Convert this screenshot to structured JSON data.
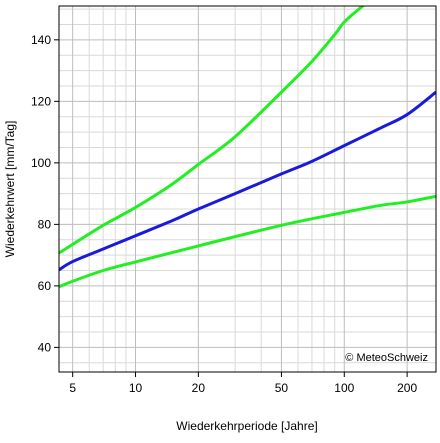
{
  "chart_data": {
    "type": "line",
    "title": "",
    "xlabel": "Wiederkehrperiode [Jahre]",
    "ylabel": "Wiederkehrwert [mm/Tag]",
    "x_scale": "log",
    "xlim": [
      4.3,
      275
    ],
    "ylim": [
      32,
      151
    ],
    "x_ticks": [
      5,
      10,
      20,
      50,
      100,
      200
    ],
    "x_tick_labels": [
      "5",
      "10",
      "20",
      "50",
      "100",
      "200"
    ],
    "x_minor_grid": [
      6,
      7,
      8,
      9,
      30,
      40,
      60,
      70,
      80,
      90
    ],
    "y_ticks": [
      40,
      60,
      80,
      100,
      120,
      140
    ],
    "y_tick_labels": [
      "40",
      "60",
      "80",
      "100",
      "120",
      "140"
    ],
    "y_minor_step": 5,
    "grid": true,
    "annotation": "© MeteoSchweiz",
    "colors": {
      "estimate": "#1a1adc",
      "confidence": "#22ee22",
      "grid_major": "#bdbdbd",
      "grid_minor": "#d9d9d9"
    },
    "series": [
      {
        "role": "estimate",
        "x": [
          4.3,
          5,
          7,
          10,
          15,
          20,
          30,
          50,
          70,
          100,
          150,
          200,
          275
        ],
        "values": [
          65.2,
          67.9,
          72.0,
          76.3,
          81.2,
          85.0,
          90.0,
          96.4,
          100.5,
          105.6,
          111.4,
          115.7,
          123.0
        ]
      },
      {
        "role": "upper",
        "x": [
          4.3,
          5,
          7,
          10,
          15,
          20,
          30,
          50,
          70,
          90,
          100,
          120,
          135
        ],
        "values": [
          70.7,
          73.5,
          79.7,
          85.5,
          93.1,
          99.5,
          108.5,
          123.0,
          133.0,
          141.7,
          145.8,
          150.5,
          153.0
        ]
      },
      {
        "role": "lower",
        "x": [
          4.3,
          5,
          7,
          10,
          20,
          50,
          100,
          150,
          200,
          275
        ],
        "values": [
          59.7,
          61.5,
          65.0,
          67.8,
          73.0,
          79.7,
          83.9,
          86.2,
          87.3,
          89.1
        ]
      }
    ]
  }
}
